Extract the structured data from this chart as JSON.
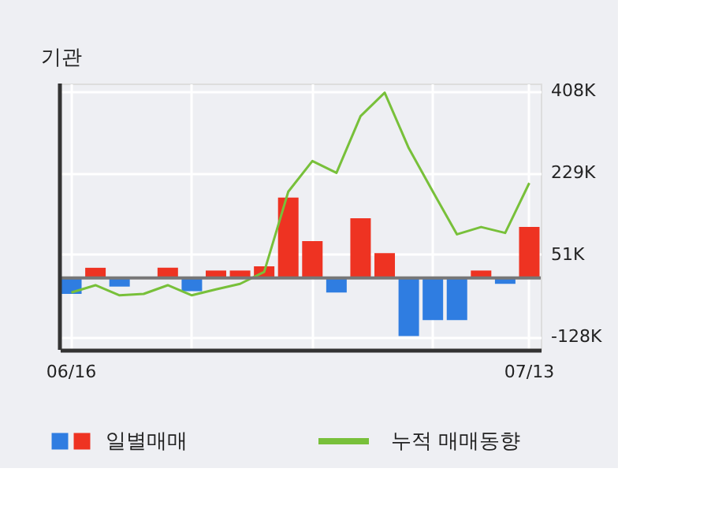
{
  "chart_data": {
    "type": "bar",
    "title": "기관",
    "categories": [
      "06/16",
      null,
      null,
      null,
      null,
      null,
      null,
      null,
      null,
      null,
      null,
      null,
      null,
      null,
      null,
      null,
      null,
      null,
      null,
      "07/13"
    ],
    "series": [
      {
        "name": "일별매매",
        "colors": [
          "#2f7de1",
          "#ee3322",
          "#2f7de1",
          "#ee3322",
          "#ee3322",
          "#2f7de1",
          "#ee3322",
          "#ee3322",
          "#ee3322",
          "#ee3322",
          "#ee3322",
          "#2f7de1",
          "#ee3322",
          "#ee3322",
          "#2f7de1",
          "#2f7de1",
          "#2f7de1",
          "#ee3322",
          "#2f7de1",
          "#ee3322"
        ],
        "values": [
          -35,
          22,
          -19,
          0,
          22,
          -29,
          16,
          16,
          25,
          175,
          80,
          -32,
          130,
          54,
          -127,
          -92,
          -92,
          16,
          -13,
          111
        ]
      },
      {
        "name": "누적 매매동향",
        "type": "line",
        "color": "#78c03a",
        "values": [
          -32,
          -16,
          -38,
          -35,
          -16,
          -38,
          -25,
          -13,
          13,
          188,
          255,
          229,
          353,
          404,
          283,
          188,
          95,
          111,
          98,
          207
        ]
      }
    ],
    "ylim": [
      -157,
      424
    ],
    "yticks": [
      {
        "value": 408,
        "label": "408K"
      },
      {
        "value": 229,
        "label": "229K"
      },
      {
        "value": 51,
        "label": "51K"
      },
      {
        "value": -128,
        "label": "-128K"
      }
    ],
    "ref_lines": [
      {
        "axis": "y",
        "value": 0,
        "color": "#777777"
      }
    ],
    "grid": true,
    "legend": "bottom"
  }
}
